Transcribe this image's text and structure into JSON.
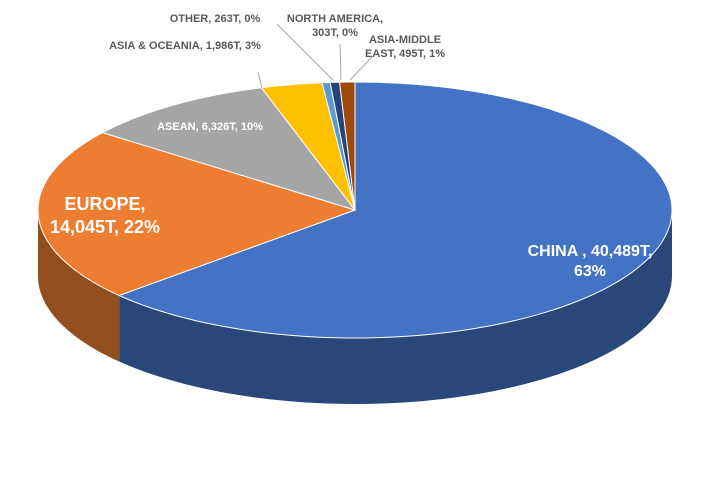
{
  "chart_data": {
    "type": "pie3d",
    "categories": [
      "CHINA",
      "EUROPE",
      "ASEAN",
      "ASIA & OCEANIA",
      "OTHER",
      "NORTH AMERICA",
      "ASIA-MIDDLE EAST"
    ],
    "values": [
      40489,
      14045,
      6326,
      1986,
      263,
      303,
      495
    ],
    "value_labels": [
      "CHINA , 40,489T, 63%",
      "EUROPE, 14,045T, 22%",
      "ASEAN, 6,326T, 10%",
      "ASIA & OCEANIA, 1,986T, 3%",
      "OTHER, 263T, 0%",
      "NORTH AMERICA, 303T, 0%",
      "ASIA-MIDDLE EAST, 495T, 1%"
    ],
    "colors": [
      "#4472c4",
      "#ed7d31",
      "#a5a5a5",
      "#ffc000",
      "#5b9bd5",
      "#264478",
      "#9e480e"
    ]
  }
}
